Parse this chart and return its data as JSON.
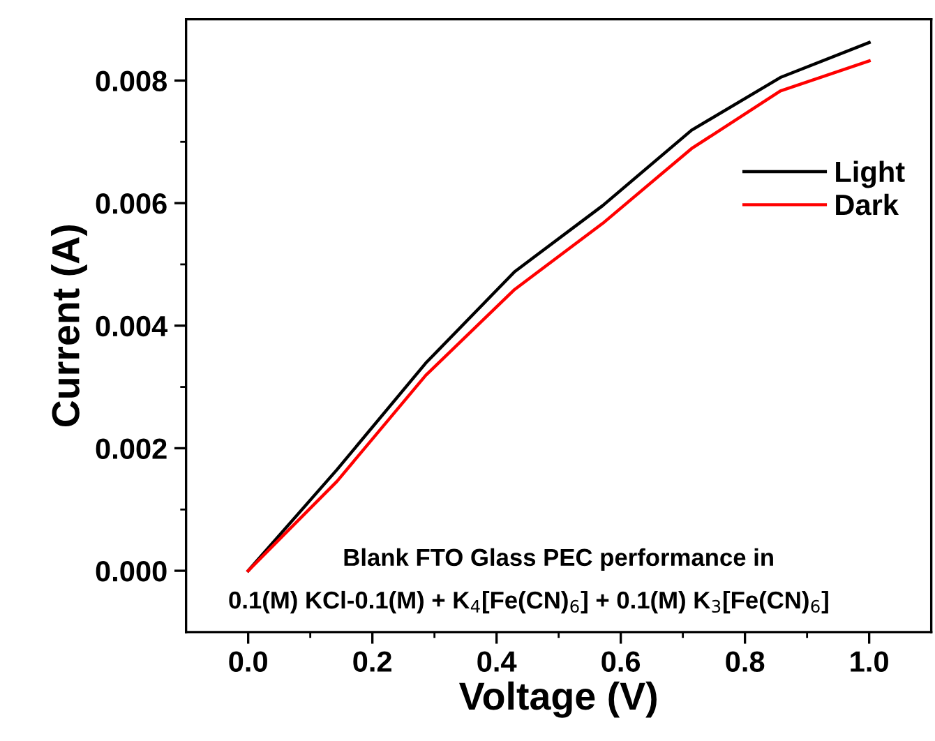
{
  "chart_data": {
    "type": "line",
    "xlabel": "Voltage (V)",
    "ylabel": "Current (A)",
    "x": [
      0,
      0.143,
      0.286,
      0.429,
      0.571,
      0.714,
      0.857,
      1.0
    ],
    "series": [
      {
        "name": "Light",
        "color": "#000000",
        "values": [
          0,
          0.00165,
          0.00339,
          0.00488,
          0.00596,
          0.00719,
          0.00805,
          0.00862
        ]
      },
      {
        "name": "Dark",
        "color": "#ff0000",
        "values": [
          0,
          0.00146,
          0.00319,
          0.00459,
          0.00567,
          0.00689,
          0.00783,
          0.00832
        ]
      }
    ],
    "xlim": [
      -0.1,
      1.1
    ],
    "ylim": [
      -0.001,
      0.009
    ],
    "xticks": [
      {
        "value": 0,
        "label": "0.0"
      },
      0.2,
      0.4,
      0.6,
      0.8,
      {
        "value": 1,
        "label": "1.0"
      }
    ],
    "yticks": [
      {
        "value": 0,
        "label": "0.000"
      },
      {
        "value": 0.002,
        "label": "0.002"
      },
      {
        "value": 0.004,
        "label": "0.004"
      },
      {
        "value": 0.006,
        "label": "0.006"
      },
      {
        "value": 0.008,
        "label": "0.008"
      }
    ],
    "annotations": [
      "Blank FTO Glass PEC performance in",
      "0.1(M) KCl-0.1(M) + K$_{4}$[Fe(CN)$_{6}$] + 0.1(M) K$_{3}$[Fe(CN)$_{6}$]"
    ],
    "legend": "right",
    "grid": false,
    "marker": "none",
    "line_style": "solid"
  }
}
